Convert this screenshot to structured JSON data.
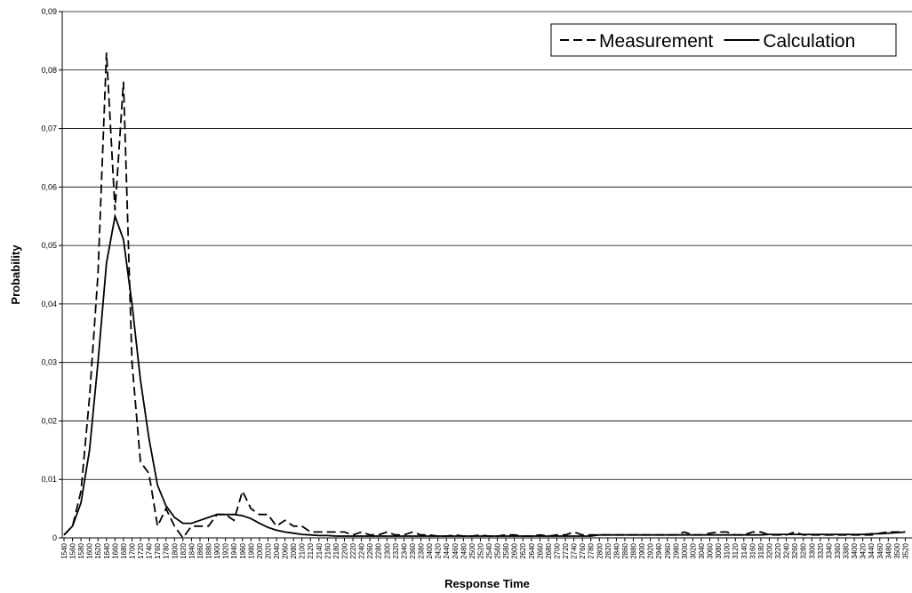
{
  "chart_data": {
    "type": "line",
    "x_label": "Response Time",
    "y_label": "Probability",
    "categories": [
      1540,
      1560,
      1580,
      1600,
      1620,
      1640,
      1660,
      1680,
      1700,
      1720,
      1740,
      1760,
      1780,
      1800,
      1820,
      1840,
      1860,
      1880,
      1900,
      1920,
      1940,
      1960,
      1980,
      2000,
      2020,
      2040,
      2060,
      2080,
      2100,
      2120,
      2140,
      2160,
      2180,
      2200,
      2220,
      2240,
      2260,
      2280,
      2300,
      2320,
      2340,
      2360,
      2380,
      2400,
      2420,
      2440,
      2460,
      2480,
      2500,
      2520,
      2540,
      2560,
      2580,
      2600,
      2620,
      2640,
      2660,
      2680,
      2700,
      2720,
      2740,
      2760,
      2780,
      2800,
      2820,
      2840,
      2860,
      2880,
      2900,
      2920,
      2940,
      2960,
      2980,
      3000,
      3020,
      3040,
      3060,
      3080,
      3100,
      3120,
      3140,
      3160,
      3180,
      3200,
      3220,
      3240,
      3260,
      3280,
      3300,
      3320,
      3340,
      3360,
      3380,
      3400,
      3420,
      3440,
      3460,
      3480,
      3500,
      3520
    ],
    "series": [
      {
        "name": "Measurement",
        "color": "#000000",
        "line_style": "dashed",
        "values": [
          0.0005,
          0.002,
          0.008,
          0.024,
          0.045,
          0.083,
          0.056,
          0.078,
          0.03,
          0.013,
          0.011,
          0.002,
          0.005,
          0.002,
          0,
          0.002,
          0.002,
          0.002,
          0.004,
          0.004,
          0.003,
          0.008,
          0.005,
          0.004,
          0.004,
          0.002,
          0.003,
          0.002,
          0.002,
          0.001,
          0.001,
          0.001,
          0.001,
          0.001,
          0.0005,
          0.001,
          0.0005,
          0.0005,
          0.001,
          0.0005,
          0.0005,
          0.001,
          0.0005,
          0.0005,
          0.0003,
          0.0003,
          0.0005,
          0.0003,
          0.0003,
          0.0005,
          0.0003,
          0.0003,
          0.0005,
          0.0005,
          0.0003,
          0.0003,
          0.0005,
          0.0003,
          0.0005,
          0.0005,
          0.001,
          0.0005,
          0.0005,
          0.0005,
          0.0005,
          0.0005,
          0.0005,
          0.0005,
          0.0005,
          0.0005,
          0.0005,
          0.0005,
          0.0005,
          0.001,
          0.0005,
          0.0005,
          0.0008,
          0.001,
          0.001,
          0.0005,
          0.0005,
          0.001,
          0.001,
          0.0005,
          0.0005,
          0.0005,
          0.001,
          0.0005,
          0.0005,
          0.0005,
          0.0005,
          0.0005,
          0.0005,
          0.0005,
          0.0005,
          0.0005,
          0.0008,
          0.001,
          0.001,
          0.001
        ]
      },
      {
        "name": "Calculation",
        "color": "#000000",
        "line_style": "solid",
        "values": [
          0.0005,
          0.002,
          0.006,
          0.015,
          0.03,
          0.047,
          0.055,
          0.051,
          0.04,
          0.027,
          0.017,
          0.009,
          0.0055,
          0.0035,
          0.0025,
          0.0025,
          0.003,
          0.0035,
          0.004,
          0.004,
          0.004,
          0.0038,
          0.0033,
          0.0025,
          0.0018,
          0.0013,
          0.001,
          0.0008,
          0.0006,
          0.0005,
          0.0004,
          0.0004,
          0.0003,
          0.0003,
          0.0003,
          0.0003,
          0.0003,
          0.0003,
          0.0003,
          0.0003,
          0.0003,
          0.0003,
          0.0003,
          0.0003,
          0.0003,
          0.0003,
          0.0003,
          0.0003,
          0.0003,
          0.0003,
          0.0003,
          0.0003,
          0.0003,
          0.0003,
          0.0003,
          0.0003,
          0.0003,
          0.0003,
          0.0003,
          0.0003,
          0.0003,
          0.0003,
          0.0003,
          0.0005,
          0.0005,
          0.0005,
          0.0005,
          0.0005,
          0.0005,
          0.0005,
          0.0005,
          0.0005,
          0.0005,
          0.0005,
          0.0005,
          0.0005,
          0.0005,
          0.0005,
          0.0005,
          0.0005,
          0.0005,
          0.0005,
          0.0005,
          0.0006,
          0.0006,
          0.0006,
          0.0006,
          0.0006,
          0.0006,
          0.0006,
          0.0006,
          0.0006,
          0.0006,
          0.0006,
          0.0006,
          0.0007,
          0.0007,
          0.0008,
          0.0009,
          0.001
        ]
      }
    ],
    "ylim": [
      0,
      0.09
    ],
    "yticks": [
      0,
      {
        "value": 0.01,
        "label": "0,01"
      },
      {
        "value": 0.02,
        "label": "0,02"
      },
      {
        "value": 0.03,
        "label": "0,03"
      },
      {
        "value": 0.04,
        "label": "0,04"
      },
      {
        "value": 0.05,
        "label": "0,05"
      },
      {
        "value": 0.06,
        "label": "0,06"
      },
      {
        "value": 0.07,
        "label": "0,07"
      },
      {
        "value": 0.08,
        "label": "0,08"
      },
      {
        "value": 0.09,
        "label": "0,09"
      }
    ],
    "grid": true,
    "legend": "top-right"
  }
}
